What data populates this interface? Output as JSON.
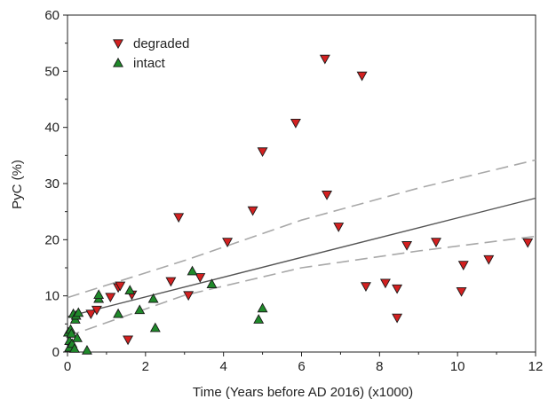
{
  "chart_data": {
    "type": "scatter",
    "xlabel": "Time (Years before AD 2016) (x1000)",
    "ylabel": "PyC (%)",
    "xlim": [
      0,
      12
    ],
    "ylim": [
      0,
      60
    ],
    "xticks": [
      "0",
      "2",
      "4",
      "6",
      "8",
      "10",
      "12"
    ],
    "yticks": [
      "0",
      "10",
      "20",
      "30",
      "40",
      "50",
      "60"
    ],
    "grid": false,
    "legend_position": "top-left",
    "series": [
      {
        "name": "degraded",
        "marker": "triangle-down",
        "color": "#d42020",
        "points": [
          [
            0.6,
            6.8
          ],
          [
            0.75,
            7.5
          ],
          [
            1.1,
            9.8
          ],
          [
            1.3,
            11.5
          ],
          [
            1.35,
            11.8
          ],
          [
            1.55,
            2.2
          ],
          [
            1.65,
            10.2
          ],
          [
            2.65,
            12.6
          ],
          [
            2.85,
            24
          ],
          [
            3.1,
            10.1
          ],
          [
            3.4,
            13.3
          ],
          [
            4.1,
            19.6
          ],
          [
            4.75,
            25.2
          ],
          [
            5.0,
            35.7
          ],
          [
            5.85,
            40.8
          ],
          [
            6.6,
            52.2
          ],
          [
            6.65,
            28
          ],
          [
            6.95,
            22.3
          ],
          [
            7.55,
            49.2
          ],
          [
            7.65,
            11.7
          ],
          [
            8.15,
            12.3
          ],
          [
            8.45,
            11.3
          ],
          [
            8.45,
            6.1
          ],
          [
            8.7,
            19
          ],
          [
            9.45,
            19.6
          ],
          [
            10.1,
            10.8
          ],
          [
            10.15,
            15.5
          ],
          [
            10.8,
            16.5
          ],
          [
            11.8,
            19.5
          ]
        ]
      },
      {
        "name": "intact",
        "marker": "triangle-up",
        "color": "#1f8a2a",
        "points": [
          [
            0.02,
            3.5
          ],
          [
            0.05,
            2.0
          ],
          [
            0.05,
            0.8
          ],
          [
            0.08,
            4.0
          ],
          [
            0.1,
            3.3
          ],
          [
            0.12,
            1.5
          ],
          [
            0.15,
            6.8
          ],
          [
            0.18,
            0.6
          ],
          [
            0.2,
            5.8
          ],
          [
            0.22,
            6.5
          ],
          [
            0.25,
            2.5
          ],
          [
            0.28,
            7.0
          ],
          [
            0.5,
            0.3
          ],
          [
            0.8,
            9.5
          ],
          [
            0.8,
            10.2
          ],
          [
            1.3,
            6.8
          ],
          [
            1.6,
            11.0
          ],
          [
            1.85,
            7.5
          ],
          [
            2.2,
            9.5
          ],
          [
            2.25,
            4.3
          ],
          [
            3.2,
            14.4
          ],
          [
            3.7,
            12.1
          ],
          [
            4.9,
            5.8
          ],
          [
            5.0,
            7.8
          ]
        ]
      }
    ],
    "fit": {
      "name": "regression line",
      "line": [
        [
          0,
          6.3
        ],
        [
          12,
          27.4
        ]
      ],
      "upper_ci": [
        [
          0,
          9.7
        ],
        [
          3,
          16.3
        ],
        [
          6,
          23.5
        ],
        [
          9,
          29.2
        ],
        [
          12,
          34.2
        ]
      ],
      "lower_ci": [
        [
          0,
          2.8
        ],
        [
          3,
          10.1
        ],
        [
          6,
          15.0
        ],
        [
          9,
          18.0
        ],
        [
          12,
          20.6
        ]
      ],
      "line_color": "#555555",
      "ci_color": "#a8a8a8"
    }
  }
}
